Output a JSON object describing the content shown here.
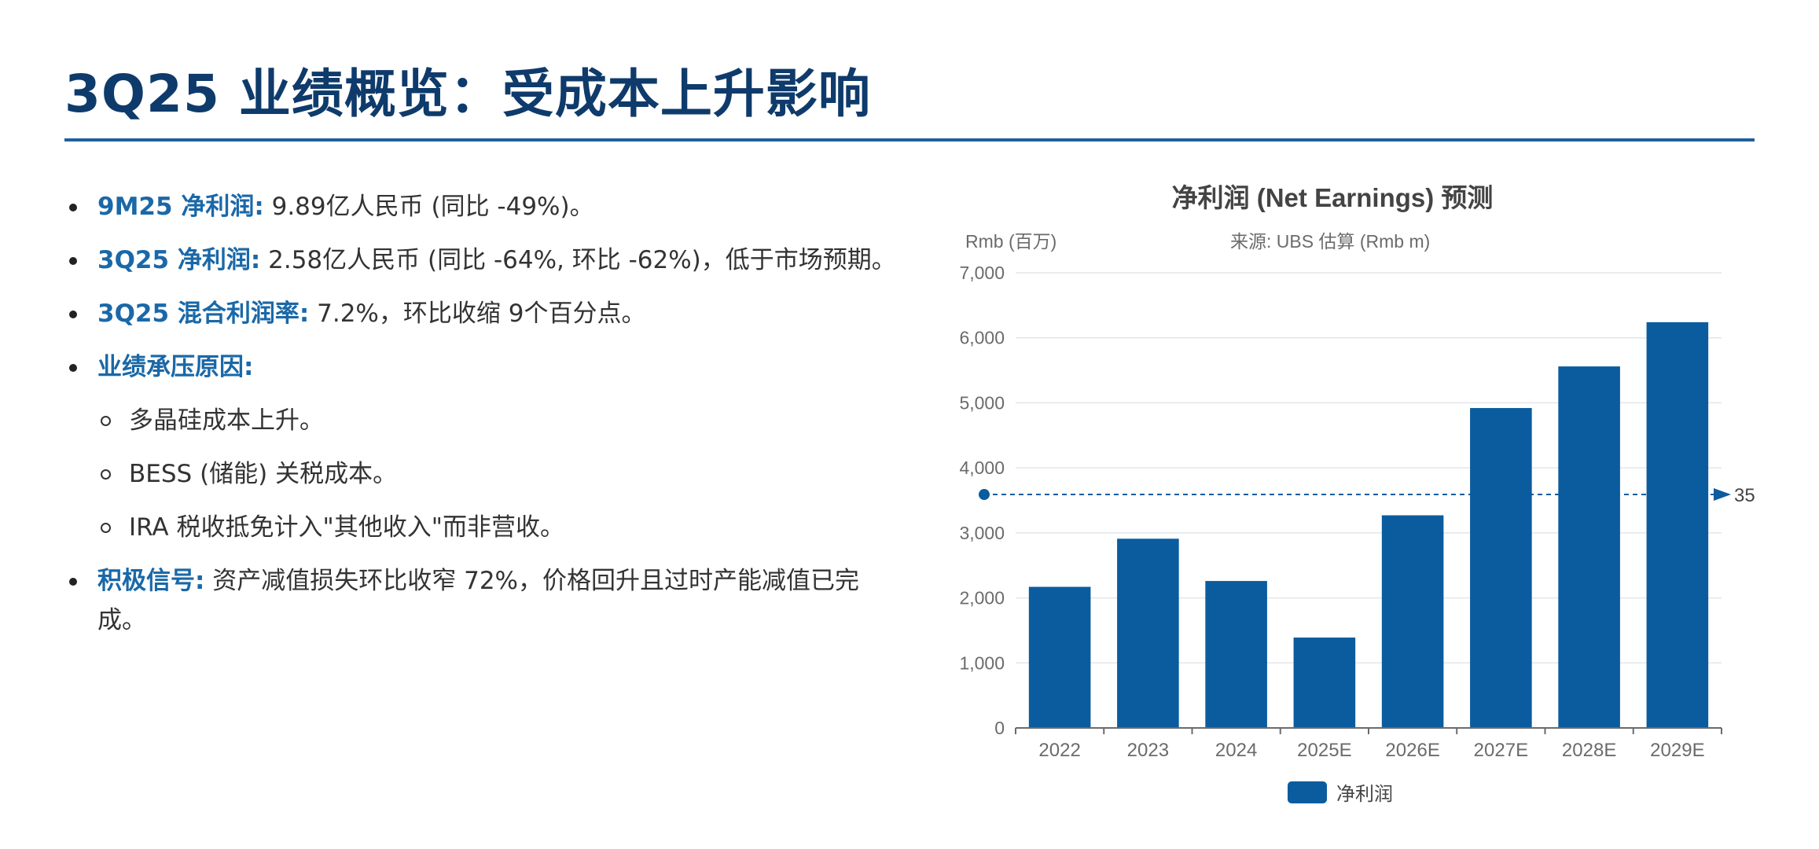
{
  "page": {
    "title": "3Q25 业绩概览：受成本上升影响"
  },
  "bullets": [
    {
      "label": "9M25 净利润:",
      "text": " 9.89亿人民币 (同比 -49%)。"
    },
    {
      "label": "3Q25 净利润:",
      "text": " 2.58亿人民币 (同比 -64%, 环比 -62%)，低于市场预期。"
    },
    {
      "label": "3Q25 混合利润率:",
      "text": " 7.2%，环比收缩 9个百分点。"
    },
    {
      "label": "业绩承压原因:",
      "text": "",
      "subs": [
        "多晶硅成本上升。",
        "BESS (储能) 关税成本。",
        "IRA 税收抵免计入\"其他收入\"而非营收。"
      ]
    },
    {
      "label": "积极信号:",
      "text": " 资产减值损失环比收窄 72%，价格回升且过时产能减值已完成。"
    }
  ],
  "chart_data": {
    "type": "bar",
    "title": "净利润 (Net Earnings) 预测",
    "unit_label": "Rmb (百万)",
    "source_note": "来源: UBS 估算 (Rmb m)",
    "categories": [
      "2022",
      "2023",
      "2024",
      "2025E",
      "2026E",
      "2027E",
      "2028E",
      "2029E"
    ],
    "series": [
      {
        "name": "净利润",
        "values": [
          2170,
          2910,
          2260,
          1390,
          3270,
          4920,
          5560,
          6240
        ]
      }
    ],
    "ylim": [
      0,
      7000
    ],
    "yticks": [
      0,
      1000,
      2000,
      3000,
      4000,
      5000,
      6000,
      7000
    ],
    "ytick_labels": [
      "0",
      "1,000",
      "2,000",
      "3,000",
      "4,000",
      "5,000",
      "6,000",
      "7,000"
    ],
    "mark_line": {
      "value": 3590,
      "label": "35"
    },
    "grid": true,
    "legend_position": "bottom-center",
    "bar_color": "#0a5c9e"
  }
}
